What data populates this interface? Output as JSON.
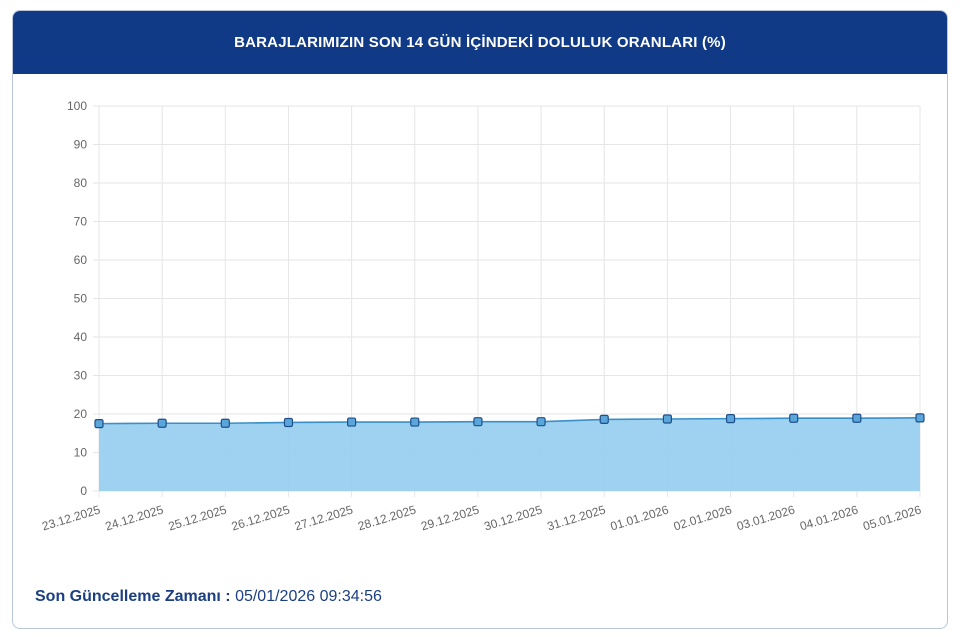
{
  "header": {
    "title": "BARAJLARIMIZIN SON 14 GÜN İÇİNDEKİ DOLULUK ORANLARI (%)"
  },
  "footer": {
    "label": "Son Güncelleme Zamanı :",
    "value": "05/01/2026 09:34:56"
  },
  "colors": {
    "header_bg": "#103a86",
    "line": "#3a8fc8",
    "fill": "#93cdee",
    "marker_fill": "#5aa6da",
    "marker_stroke": "#1f4f8a",
    "footer_text": "#1c3f82"
  },
  "chart_data": {
    "type": "area",
    "categories": [
      "23.12.2025",
      "24.12.2025",
      "25.12.2025",
      "26.12.2025",
      "27.12.2025",
      "28.12.2025",
      "29.12.2025",
      "30.12.2025",
      "31.12.2025",
      "01.01.2026",
      "02.01.2026",
      "03.01.2026",
      "04.01.2026",
      "05.01.2026"
    ],
    "values": [
      17.5,
      17.6,
      17.6,
      17.8,
      17.9,
      17.9,
      18.0,
      18.0,
      18.6,
      18.7,
      18.8,
      18.9,
      18.9,
      19.0
    ],
    "ylim": [
      0,
      100
    ],
    "yticks": [
      0,
      10,
      20,
      30,
      40,
      50,
      60,
      70,
      80,
      90,
      100
    ],
    "grid": true,
    "legend": "none"
  }
}
